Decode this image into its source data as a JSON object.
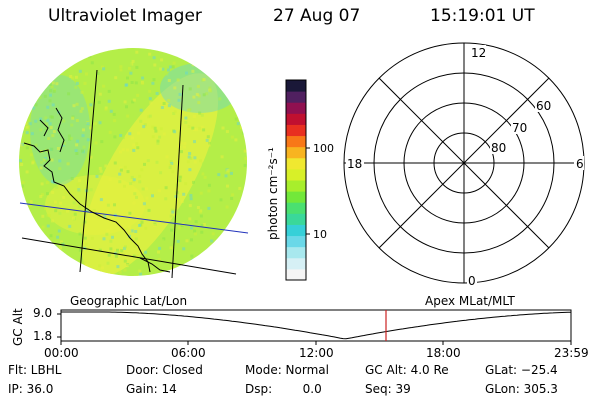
{
  "header": {
    "title": "Ultraviolet Imager",
    "date": "27 Aug 07",
    "time": "15:19:01 UT"
  },
  "colorbar": {
    "unit_label": "photon cm⁻²s⁻¹",
    "ticks": [
      "100",
      "10"
    ],
    "colors": [
      "#f5f5f5",
      "#d6f0f5",
      "#a8e8ee",
      "#6ad8e8",
      "#36d0d8",
      "#3ad89a",
      "#4ae070",
      "#72e83a",
      "#a8ee2c",
      "#d8f028",
      "#f0e830",
      "#f8b420",
      "#f87818",
      "#e83020",
      "#c01030",
      "#901050",
      "#502060",
      "#1a1838"
    ]
  },
  "image_panel": {
    "caption": "Geographic Lat/Lon",
    "colors": {
      "base": "#b4ee48",
      "bright": "#e6f040",
      "dim": "#6ad8c8"
    }
  },
  "polar_panel": {
    "caption": "Apex MLat/MLT",
    "mlt_labels": {
      "top": "12",
      "left": "18",
      "right": "6",
      "bottom": "0"
    },
    "lat_labels": [
      "60",
      "70",
      "80"
    ]
  },
  "altitude_plot": {
    "axis_title": "GC Alt",
    "y_ticks": [
      "9.0",
      "1.8"
    ],
    "x_ticks": [
      "00:00",
      "06:00",
      "12:00",
      "18:00",
      "23:59"
    ],
    "marker_time": "15:19:01",
    "marker_color": "#cc2222"
  },
  "info": {
    "filter": "Flt: LBHL",
    "door": "Door: Closed",
    "mode": "Mode: Normal",
    "gc_alt": "GC Alt: 4.0 Re",
    "glat": "GLat: −25.4",
    "ip": "IP: 36.0",
    "gain": "Gain: 14",
    "dsp": "Dsp:        0.0",
    "seq": "Seq: 39",
    "glon": "GLon: 305.3"
  }
}
